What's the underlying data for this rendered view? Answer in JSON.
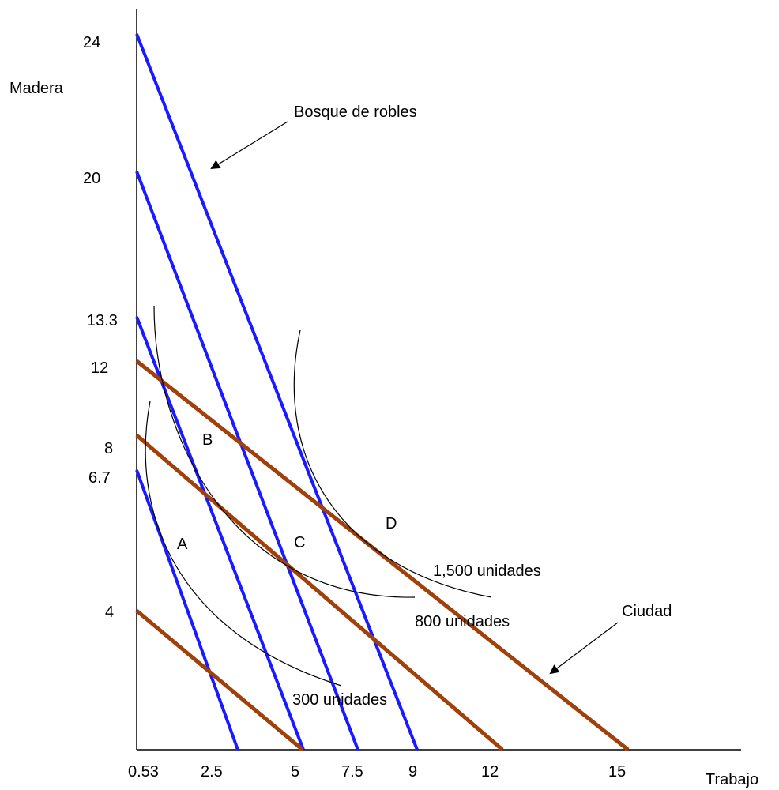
{
  "axes": {
    "y_label": "Madera",
    "x_label": "Trabajo",
    "y_ticks": [
      "24",
      "20",
      "13.3",
      "12",
      "8",
      "6.7",
      "4"
    ],
    "x_ticks": [
      "0.53",
      "2.5",
      "5",
      "7.5",
      "9",
      "12",
      "15"
    ]
  },
  "colors": {
    "forest_lines": "#1a1aff",
    "city_lines": "#a0400b",
    "ink": "#000000"
  },
  "forest_lines": [
    {
      "y_intercept": "24",
      "x_intercept": "9"
    },
    {
      "y_intercept": "20",
      "x_intercept": "7.5"
    },
    {
      "y_intercept": "13.3",
      "x_intercept": "5"
    },
    {
      "y_intercept": "6.7",
      "x_intercept": "2.5"
    }
  ],
  "city_lines": [
    {
      "y_intercept": "12",
      "x_intercept": "15"
    },
    {
      "y_intercept": "8",
      "x_intercept": "12"
    },
    {
      "y_intercept": "4",
      "x_intercept": "5"
    }
  ],
  "isoquants": [
    {
      "label": "300 unidades"
    },
    {
      "label": "800 unidades"
    },
    {
      "label": "1,500 unidades"
    }
  ],
  "points": [
    "A",
    "B",
    "C",
    "D"
  ],
  "annotations": {
    "forest": "Bosque de robles",
    "city": "Ciudad"
  }
}
